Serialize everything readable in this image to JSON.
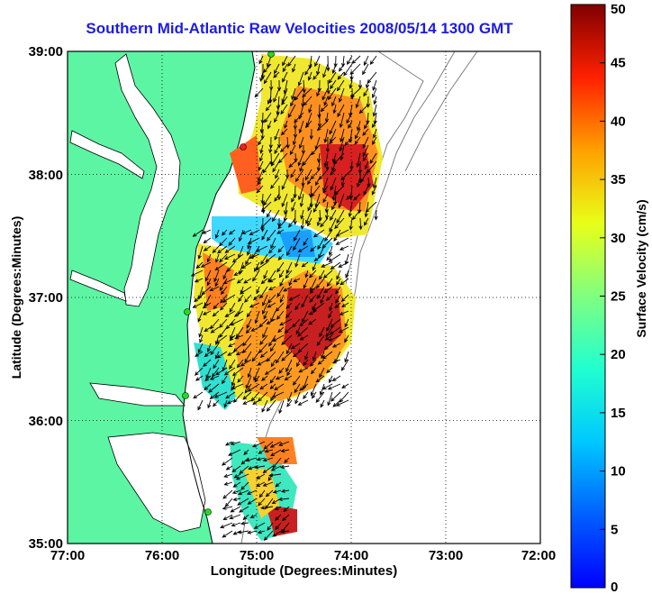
{
  "title": "Southern Mid-Atlantic Raw Velocities 2008/05/14 1300 GMT",
  "x_axis": {
    "label": "Longitude (Degrees:Minutes)",
    "ticks": [
      "77:00",
      "76:00",
      "75:00",
      "74:00",
      "73:00",
      "72:00"
    ]
  },
  "y_axis": {
    "label": "Latitude (Degrees:Minutes)",
    "ticks": [
      "39:00",
      "38:00",
      "37:00",
      "36:00",
      "35:00"
    ]
  },
  "colorbar": {
    "label": "Surface Velocity (cm/s)",
    "ticks": [
      "0",
      "5",
      "10",
      "15",
      "20",
      "25",
      "30",
      "35",
      "40",
      "45",
      "50"
    ],
    "range": [
      0,
      50
    ],
    "colormap": "jet"
  },
  "map": {
    "lon_range": [
      -77,
      -72
    ],
    "lat_range": [
      35,
      39
    ],
    "land_color": "#5cf5a3",
    "arrow_color": "#000000",
    "gridlines": "dotted",
    "bathymetry_contours": true,
    "sites_marker_color": "#22dd22"
  }
}
